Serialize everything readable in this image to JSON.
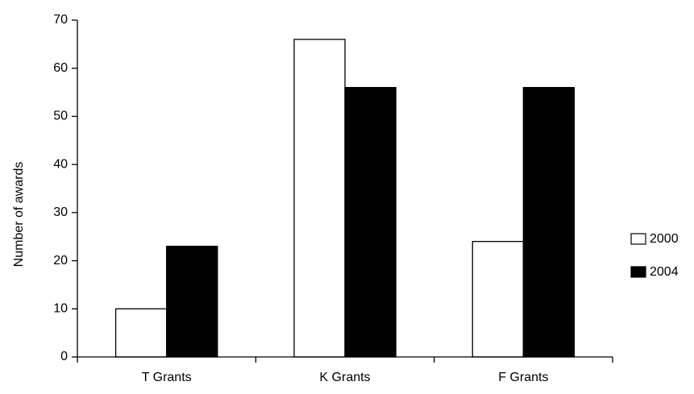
{
  "chart_data": {
    "type": "bar",
    "title": "",
    "xlabel": "",
    "ylabel": "Number of awards",
    "categories": [
      "T Grants",
      "K Grants",
      "F Grants"
    ],
    "series": [
      {
        "name": "2000",
        "values": [
          10,
          66,
          24
        ],
        "color": "#ffffff"
      },
      {
        "name": "2004",
        "values": [
          23,
          56,
          56
        ],
        "color": "#000000"
      }
    ],
    "ylim": [
      0,
      70
    ],
    "yticks": [
      0,
      10,
      20,
      30,
      40,
      50,
      60,
      70
    ],
    "grid": false,
    "legend_position": "right"
  }
}
